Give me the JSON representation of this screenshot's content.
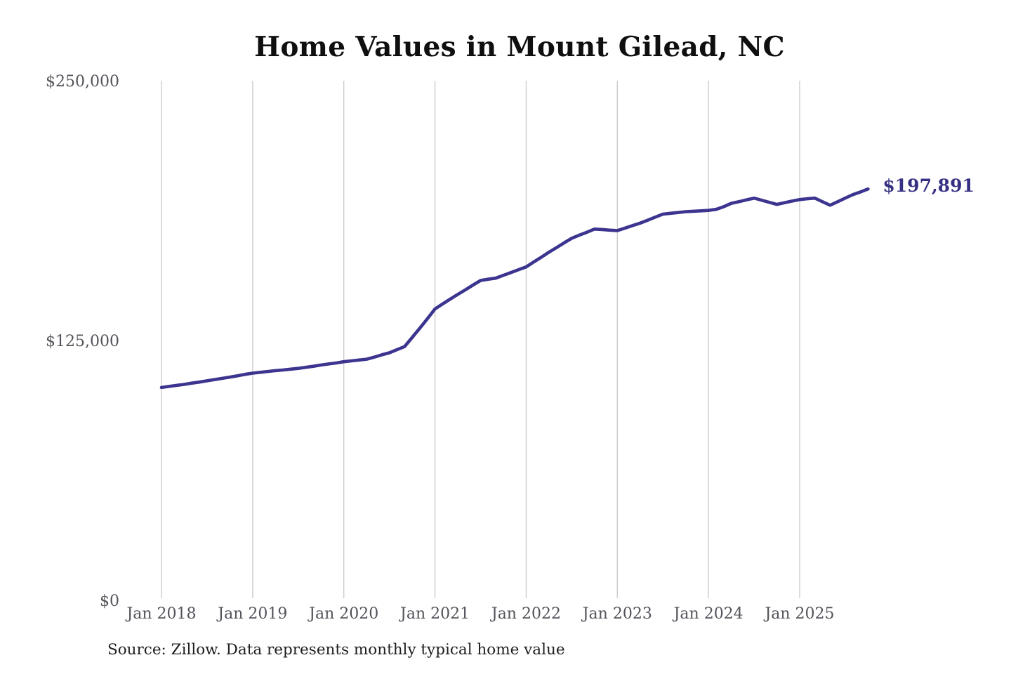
{
  "chart_data": {
    "type": "line",
    "title": "Home Values in Mount Gilead, NC",
    "source_note": "Source: Zillow. Data represents monthly typical home value",
    "end_label": "$197,891",
    "last_value": 197891,
    "legend": "none",
    "grid": "vertical-yearly-gridlines",
    "ylim": [
      0,
      250000
    ],
    "y_ticks": [
      {
        "value": 0,
        "label": "$0"
      },
      {
        "value": 125000,
        "label": "$125,000"
      },
      {
        "value": 250000,
        "label": "$250,000"
      }
    ],
    "x_tick_labels": [
      "Jan 2018",
      "Jan 2019",
      "Jan 2020",
      "Jan 2021",
      "Jan 2022",
      "Jan 2023",
      "Jan 2024",
      "Jan 2025"
    ],
    "colors": {
      "line": "#3c3590",
      "end_label": "#363082",
      "axis_text": "#54525a",
      "gridline": "#c9c9c9",
      "title": "#0f0f0f",
      "source_text": "#1e1e1e",
      "background": "#ffffff"
    },
    "series": [
      {
        "name": "Typical home value (monthly)",
        "frequency": "monthly",
        "start": "2018-01",
        "end": "2025-10",
        "months": [
          "2018-01",
          "2018-02",
          "2018-03",
          "2018-04",
          "2018-05",
          "2018-06",
          "2018-07",
          "2018-08",
          "2018-09",
          "2018-10",
          "2018-11",
          "2018-12",
          "2019-01",
          "2019-02",
          "2019-03",
          "2019-04",
          "2019-05",
          "2019-06",
          "2019-07",
          "2019-08",
          "2019-09",
          "2019-10",
          "2019-11",
          "2019-12",
          "2020-01",
          "2020-02",
          "2020-03",
          "2020-04",
          "2020-05",
          "2020-06",
          "2020-07",
          "2020-08",
          "2020-09",
          "2020-10",
          "2020-11",
          "2020-12",
          "2021-01",
          "2021-02",
          "2021-03",
          "2021-04",
          "2021-05",
          "2021-06",
          "2021-07",
          "2021-08",
          "2021-09",
          "2021-10",
          "2021-11",
          "2021-12",
          "2022-01",
          "2022-02",
          "2022-03",
          "2022-04",
          "2022-05",
          "2022-06",
          "2022-07",
          "2022-08",
          "2022-09",
          "2022-10",
          "2022-11",
          "2022-12",
          "2023-01",
          "2023-02",
          "2023-03",
          "2023-04",
          "2023-05",
          "2023-06",
          "2023-07",
          "2023-08",
          "2023-09",
          "2023-10",
          "2023-11",
          "2023-12",
          "2024-01",
          "2024-02",
          "2024-03",
          "2024-04",
          "2024-05",
          "2024-06",
          "2024-07",
          "2024-08",
          "2024-09",
          "2024-10",
          "2024-11",
          "2024-12",
          "2025-01",
          "2025-02",
          "2025-03",
          "2025-04",
          "2025-05",
          "2025-06",
          "2025-07",
          "2025-08",
          "2025-09",
          "2025-10"
        ],
        "values": [
          102400,
          102900,
          103400,
          103900,
          104500,
          105000,
          105600,
          106200,
          106800,
          107400,
          108000,
          108700,
          109300,
          109700,
          110100,
          110500,
          110800,
          111200,
          111600,
          112100,
          112600,
          113200,
          113700,
          114200,
          114800,
          115200,
          115600,
          116000,
          117000,
          118100,
          119100,
          120600,
          122100,
          126500,
          130900,
          135500,
          140200,
          142600,
          144900,
          147200,
          149400,
          151700,
          153900,
          154500,
          155000,
          156400,
          157700,
          159100,
          160400,
          162800,
          165100,
          167500,
          169700,
          172000,
          174200,
          175700,
          177100,
          178600,
          178400,
          178100,
          177900,
          179100,
          180300,
          181500,
          182900,
          184400,
          185800,
          186200,
          186600,
          187000,
          187200,
          187400,
          187600,
          188100,
          189400,
          191000,
          191800,
          192700,
          193500,
          192500,
          191500,
          190500,
          191300,
          192100,
          192800,
          193200,
          193500,
          191800,
          190100,
          191800,
          193500,
          195200,
          196500,
          197891
        ]
      }
    ]
  }
}
